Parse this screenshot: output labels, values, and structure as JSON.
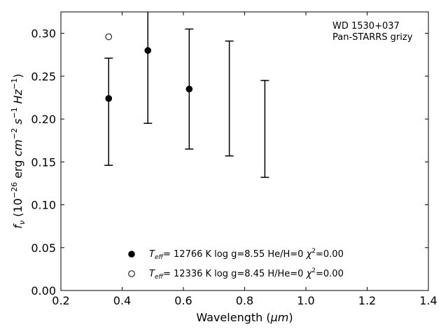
{
  "chart_data": {
    "type": "scatter",
    "xlabel_main": "Wavelength (",
    "xlabel_unit": "μm",
    "xlabel_close": ")",
    "ylabel_f": "f",
    "ylabel_nu": "ν",
    "ylabel_open": " (10",
    "ylabel_exp1": "−26",
    "ylabel_erg": " erg ",
    "ylabel_cm": "cm",
    "ylabel_exp2": "−2",
    "ylabel_s": " s",
    "ylabel_exp3": "−1",
    "ylabel_hz": " Hz",
    "ylabel_exp4": "−1",
    "ylabel_close": ")",
    "xlim": [
      0.2,
      1.4
    ],
    "ylim": [
      0.0,
      0.325
    ],
    "xticks": [
      "0.2",
      "0.4",
      "0.6",
      "0.8",
      "1.0",
      "1.2",
      "1.4"
    ],
    "yticks": [
      "0.00",
      "0.05",
      "0.10",
      "0.15",
      "0.20",
      "0.25",
      "0.30"
    ],
    "grid": false,
    "legend_position": "lower-center",
    "annotation_lines": [
      "WD 1530+037",
      "Pan-STARRS grizy"
    ],
    "observed_errorbars": [
      {
        "x": 0.356,
        "low": 0.146,
        "high": 0.271
      },
      {
        "x": 0.484,
        "low": 0.195,
        "high": 0.34
      },
      {
        "x": 0.619,
        "low": 0.165,
        "high": 0.305
      },
      {
        "x": 0.75,
        "low": 0.157,
        "high": 0.291
      },
      {
        "x": 0.866,
        "low": 0.132,
        "high": 0.245
      }
    ],
    "series": [
      {
        "name": "Teff= 12766 K  log g=8.55  He/H=0  χ²=0.00",
        "marker": "filled-circle",
        "points": [
          {
            "x": 0.356,
            "y": 0.224
          },
          {
            "x": 0.484,
            "y": 0.28
          },
          {
            "x": 0.619,
            "y": 0.235
          }
        ]
      },
      {
        "name": "Teff= 12336 K  log g=8.45  H/He=0  χ²=0.00",
        "marker": "open-circle",
        "points": [
          {
            "x": 0.356,
            "y": 0.296
          }
        ]
      }
    ],
    "legend": [
      {
        "teff_T": "T",
        "teff_sub": "eff",
        "rest": "= 12766 K  log g=8.55  He/H=0  ",
        "chi": "χ",
        "chi_exp": "2",
        "chi_val": "=0.00"
      },
      {
        "teff_T": "T",
        "teff_sub": "eff",
        "rest": "= 12336 K  log g=8.45  H/He=0  ",
        "chi": "χ",
        "chi_exp": "2",
        "chi_val": "=0.00"
      }
    ],
    "colors": {
      "marker": "#000000",
      "axes": "#000000",
      "background": "#ffffff"
    }
  }
}
